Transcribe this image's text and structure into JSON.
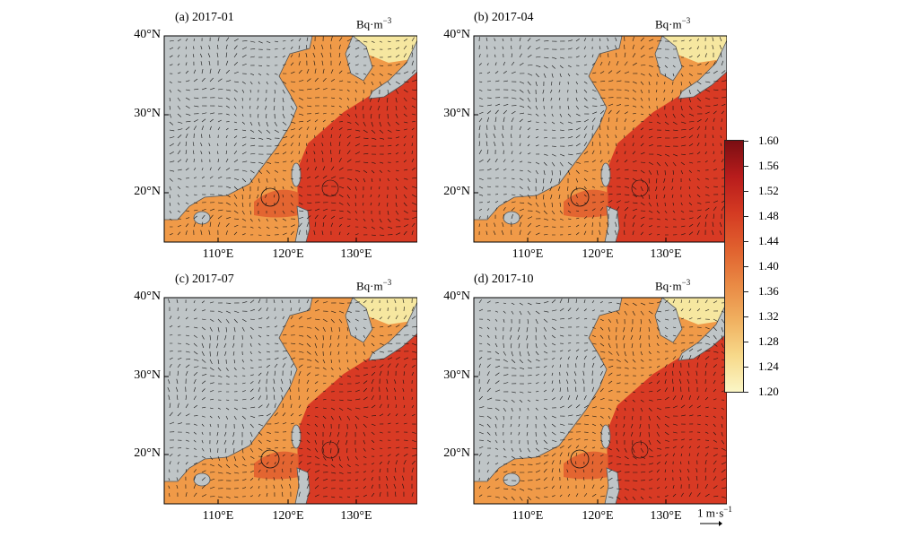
{
  "panels": [
    {
      "title": "(a) 2017-01",
      "unit": "Bq·m",
      "unit_exp": "−3"
    },
    {
      "title": "(b) 2017-04",
      "unit": "Bq·m",
      "unit_exp": "−3"
    },
    {
      "title": "(c) 2017-07",
      "unit": "Bq·m",
      "unit_exp": "−3"
    },
    {
      "title": "(d) 2017-10",
      "unit": "Bq·m",
      "unit_exp": "−3"
    }
  ],
  "lat_labels": [
    "40°N",
    "30°N",
    "20°N"
  ],
  "lon_labels": [
    "110°E",
    "120°E",
    "130°E"
  ],
  "colorbar": {
    "ticks": [
      "1.60",
      "1.56",
      "1.52",
      "1.48",
      "1.44",
      "1.40",
      "1.36",
      "1.32",
      "1.28",
      "1.24",
      "1.20"
    ],
    "range": [
      1.2,
      1.6
    ],
    "colors": [
      "#fbf6c6",
      "#f7d98a",
      "#f0b060",
      "#e98944",
      "#e0602e",
      "#d43a22",
      "#b81c1c",
      "#7a0e12"
    ]
  },
  "vector_scale": {
    "label": "1 m·s",
    "label_exp": "−1"
  },
  "colors": {
    "land": "#bfc5c7",
    "warm": "#d83a24",
    "mid": "#f09a48",
    "cool": "#f6e7a0"
  }
}
